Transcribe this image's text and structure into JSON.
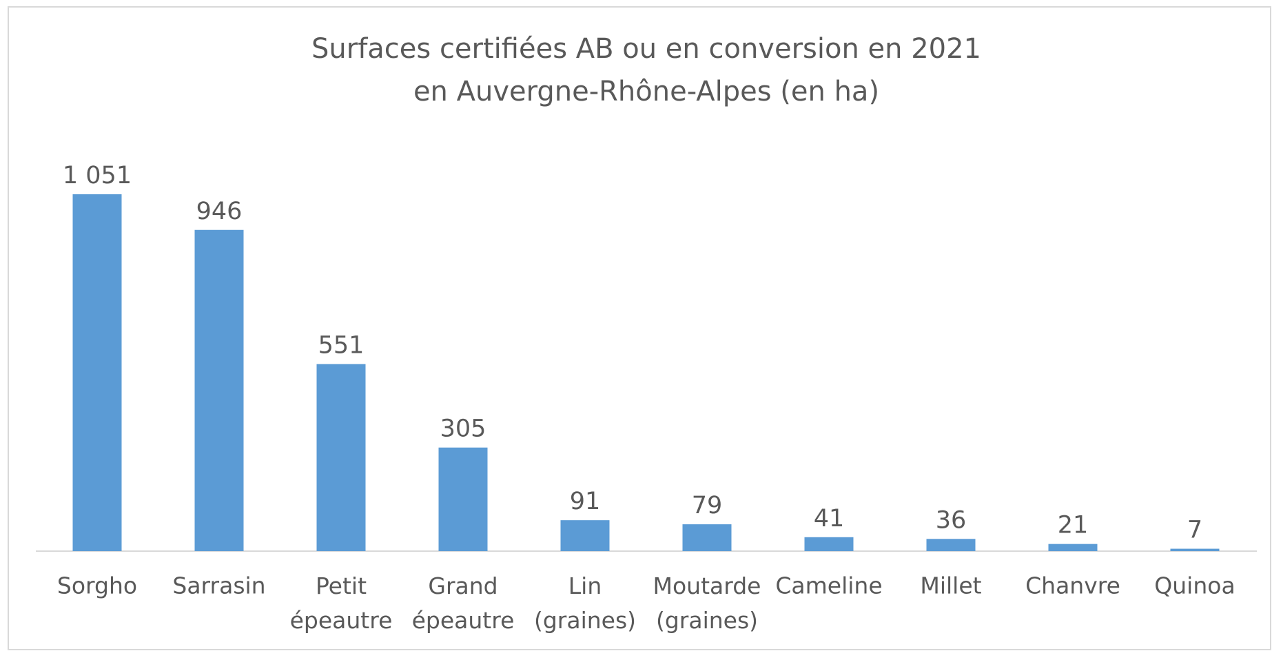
{
  "chart_data": {
    "type": "bar",
    "title": [
      "Surfaces certifiées AB ou en conversion en 2021",
      "en Auvergne-Rhône-Alpes (en ha)"
    ],
    "categories": [
      "Sorgho",
      "Sarrasin",
      "Petit épeautre",
      "Grand épeautre",
      "Lin (graines)",
      "Moutarde (graines)",
      "Cameline",
      "Millet",
      "Chanvre",
      "Quinoa"
    ],
    "values": [
      1051,
      946,
      551,
      305,
      91,
      79,
      41,
      36,
      21,
      7
    ],
    "value_labels": [
      "1 051",
      "946",
      "551",
      "305",
      "91",
      "79",
      "41",
      "36",
      "21",
      "7"
    ],
    "color": "#5b9bd5"
  }
}
